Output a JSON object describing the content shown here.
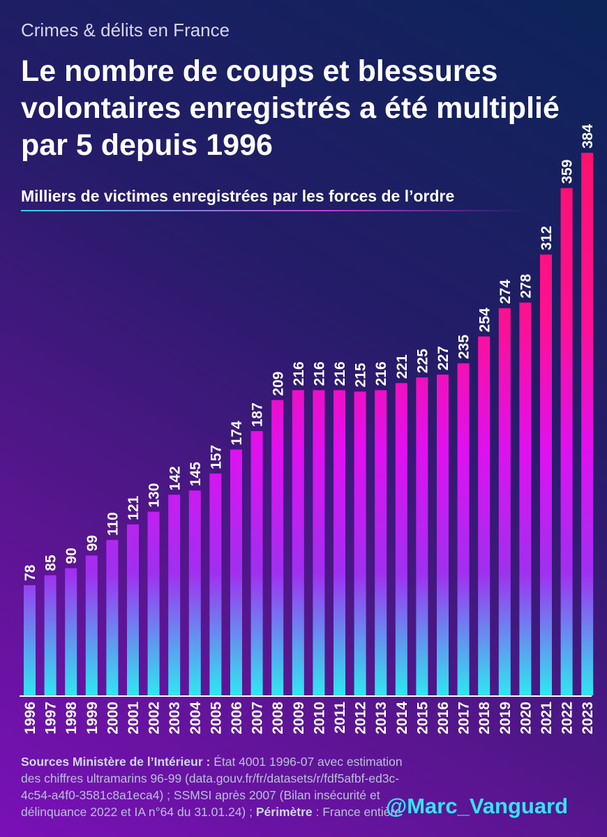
{
  "header": {
    "kicker": "Crimes & délits en France",
    "title": "Le nombre de coups et blessures volontaires enregistrés a été multiplié par 5 depuis 1996",
    "subtitle": "Milliers de victimes enregistrées par les forces de l’ordre"
  },
  "chart_data": {
    "type": "bar",
    "title": "Le nombre de coups et blessures volontaires enregistrés a été multiplié par 5 depuis 1996",
    "subtitle": "Milliers de victimes enregistrées par les forces de l’ordre",
    "xlabel": "",
    "ylabel": "",
    "ylim": [
      0,
      400
    ],
    "grid": false,
    "legend": "none",
    "categories": [
      "1996",
      "1997",
      "1998",
      "1999",
      "2000",
      "2001",
      "2002",
      "2003",
      "2004",
      "2005",
      "2006",
      "2007",
      "2008",
      "2009",
      "2010",
      "2011",
      "2012",
      "2013",
      "2014",
      "2015",
      "2016",
      "2017",
      "2018",
      "2019",
      "2020",
      "2021",
      "2022",
      "2023"
    ],
    "values": [
      78,
      85,
      90,
      99,
      110,
      121,
      130,
      142,
      145,
      157,
      174,
      187,
      209,
      216,
      216,
      216,
      215,
      216,
      221,
      225,
      227,
      235,
      254,
      274,
      278,
      312,
      359,
      384
    ],
    "colors": {
      "bar_bottom": "#2ee8f0",
      "bar_middle": "#e010f0",
      "bar_top": "#ff1070",
      "axis": "#ffffff",
      "labels": "#ffffff"
    }
  },
  "footer": {
    "sources_label": "Sources Ministère de l’Intérieur :",
    "sources_text": " État 4001 1996-07 avec estimation des chiffres ultramarins 96-99 (data.gouv.fr/fr/datasets/r/fdf5afbf-ed3c-4c54-a4f0-3581c8a1eca4) ; SSMSI après 2007 (Bilan insécurité et délinquance 2022 et IA n°64 du 31.01.24) ;",
    "scope_label": "Périmètre",
    "scope_text": " : France entière"
  },
  "brand": {
    "handle": "@Marc_Vanguard"
  }
}
